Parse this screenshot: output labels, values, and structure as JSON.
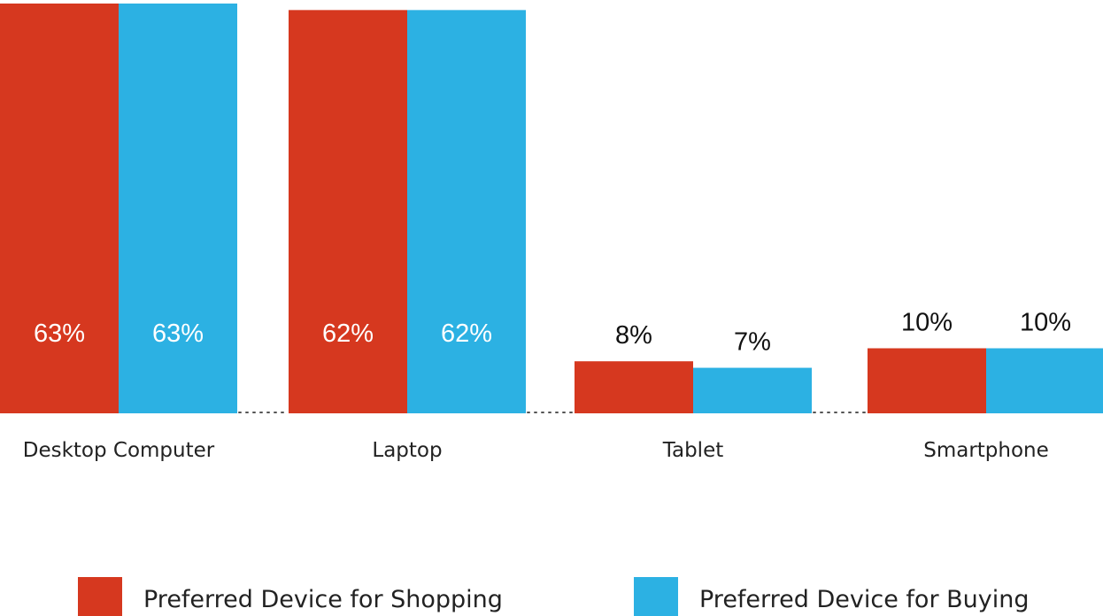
{
  "chart_data": {
    "type": "bar",
    "categories": [
      "Desktop Computer",
      "Laptop",
      "Tablet",
      "Smartphone"
    ],
    "series": [
      {
        "name": "Preferred Device for Shopping",
        "values": [
          63,
          62,
          8,
          10
        ],
        "labels": [
          "63%",
          "62%",
          "8%",
          "10%"
        ],
        "color": "#d6381f"
      },
      {
        "name": "Preferred Device for Buying",
        "values": [
          63,
          62,
          7,
          10
        ],
        "labels": [
          "63%",
          "62%",
          "7%",
          "10%"
        ],
        "color": "#2cb1e3"
      }
    ],
    "ylim": [
      0,
      63
    ],
    "grid": false,
    "axes_visible": false,
    "legend_position": "bottom",
    "inside_label_color": "#ffffff",
    "outside_label_color": "#111111",
    "separator_color": "#555555"
  }
}
